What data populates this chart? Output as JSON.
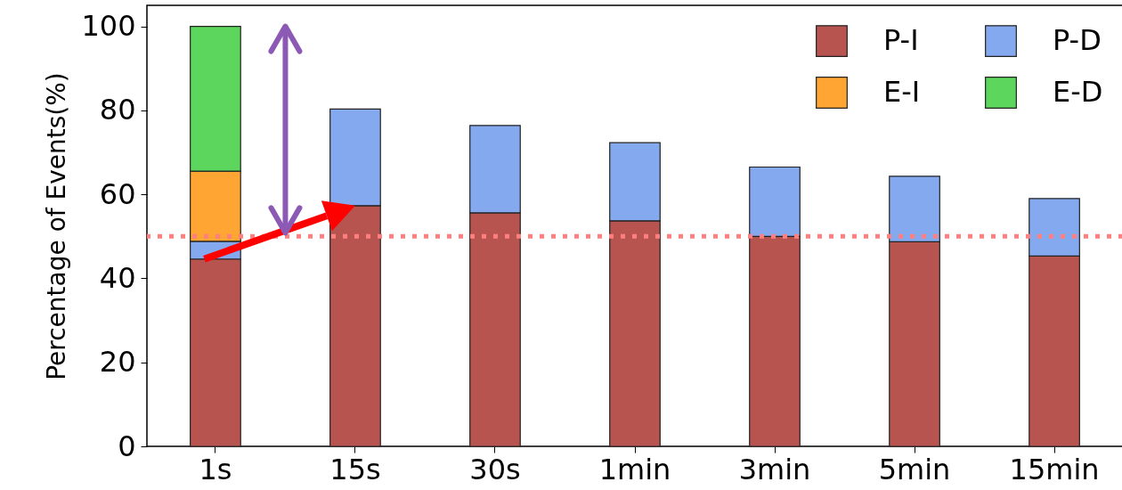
{
  "chart_data": {
    "type": "bar",
    "stacked": true,
    "ylabel": "Percentage of Events(%)",
    "categories": [
      "1s",
      "15s",
      "30s",
      "1min",
      "3min",
      "5min",
      "15min"
    ],
    "series": [
      {
        "name": "P-I",
        "color": "#b85450",
        "values": [
          44.6,
          57.3,
          55.6,
          53.7,
          50.0,
          48.7,
          45.3
        ]
      },
      {
        "name": "P-D",
        "color": "#84a9ee",
        "values": [
          4.2,
          23.0,
          20.8,
          18.6,
          16.5,
          15.6,
          13.7
        ]
      },
      {
        "name": "E-I",
        "color": "#ffa533",
        "values": [
          16.7,
          null,
          null,
          null,
          null,
          null,
          null
        ]
      },
      {
        "name": "E-D",
        "color": "#5cd65c",
        "values": [
          34.5,
          null,
          null,
          null,
          null,
          null,
          null
        ]
      }
    ],
    "ylim": [
      0,
      105
    ],
    "yticks": [
      0,
      20,
      40,
      60,
      80,
      100
    ],
    "ref_lines": [
      {
        "axis": "y",
        "value": 50,
        "color": "#ff7f7f",
        "line_style": "dotted"
      }
    ],
    "grid": false,
    "legend": "top right"
  }
}
